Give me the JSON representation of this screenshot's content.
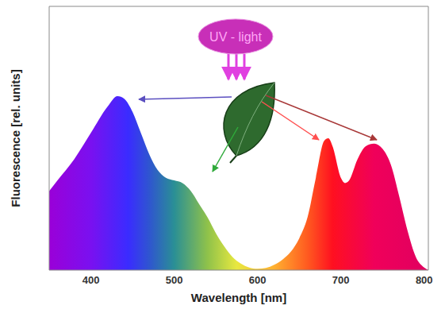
{
  "chart_data": {
    "type": "area",
    "xlabel": "Wavelength [nm]",
    "ylabel": "Fluorescence [rel. units]",
    "annotation": "UV - light",
    "x": [
      350,
      360,
      380,
      400,
      420,
      432,
      440,
      450,
      460,
      470,
      480,
      490,
      500,
      510,
      520,
      530,
      540,
      550,
      560,
      570,
      580,
      590,
      600,
      610,
      620,
      630,
      640,
      650,
      660,
      670,
      680,
      685,
      690,
      700,
      705,
      710,
      720,
      730,
      740,
      750,
      760,
      770,
      780,
      790,
      800,
      805
    ],
    "values": [
      30,
      34,
      42,
      52,
      62,
      66,
      65,
      60,
      52,
      44,
      38,
      35,
      34,
      33,
      30,
      25,
      20,
      14,
      9,
      5,
      2.5,
      1,
      0.5,
      0.8,
      2,
      4,
      7,
      12,
      20,
      35,
      49,
      50,
      47,
      35,
      33,
      34,
      42,
      47,
      48,
      46,
      40,
      28,
      15,
      5,
      1,
      0
    ],
    "xlim": [
      350,
      805
    ],
    "xticks": [
      400,
      500,
      600,
      700,
      800
    ],
    "ylim": [
      0,
      100
    ],
    "tick_labels": "x"
  }
}
